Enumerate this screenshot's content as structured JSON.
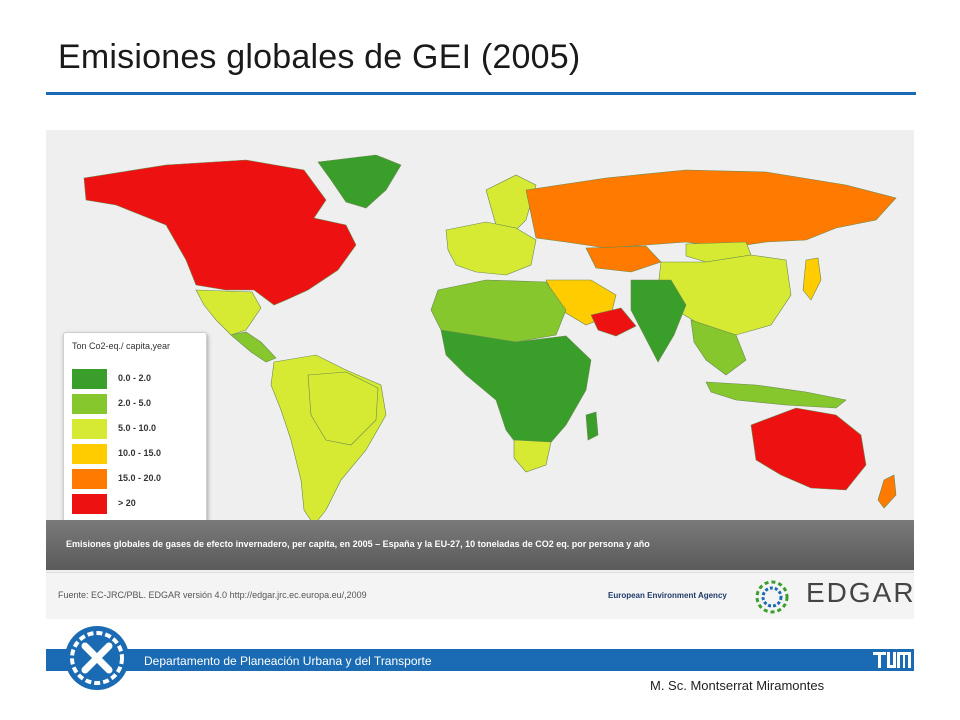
{
  "slide": {
    "title": "Emisiones globales de GEI (2005)"
  },
  "map": {
    "legend": {
      "title": "Ton Co2-eq./ capita,year",
      "items": [
        {
          "label": "0.0 - 2.0",
          "color": "#3a9e2b"
        },
        {
          "label": "2.0 - 5.0",
          "color": "#86c72d"
        },
        {
          "label": "5.0 - 10.0",
          "color": "#d6ea34"
        },
        {
          "label": "10.0 - 15.0",
          "color": "#ffcc00"
        },
        {
          "label": "15.0 - 20.0",
          "color": "#ff7a00"
        },
        {
          "label": "> 20",
          "color": "#ee1111"
        }
      ]
    },
    "caption": "Emisiones globales de gases de efecto invernadero, per capita, en 2005 – España y la EU-27, 10 toneladas de CO2 eq. por persona y año",
    "source": "Fuente: EC-JRC/PBL. EDGAR versión 4.0 http://edgar.jrc.ec.europa.eu/,2009",
    "agency": "European Environment Agency",
    "edgar_logo": "EDGAR",
    "region_colors": {
      "north_america": "#ee1111",
      "greenland": "#3a9e2b",
      "mexico": "#d6ea34",
      "central_america": "#86c72d",
      "south_america": "#d6ea34",
      "brazil": "#d6ea34",
      "argentina": "#d6ea34",
      "europe_west": "#d6ea34",
      "russia": "#ff7a00",
      "kazakhstan": "#ff7a00",
      "china": "#d6ea34",
      "mongolia": "#d6ea34",
      "india": "#3a9e2b",
      "southeast_asia": "#86c72d",
      "middle_east": "#ffcc00",
      "gulf": "#ee1111",
      "north_africa": "#86c72d",
      "africa_central": "#3a9e2b",
      "south_africa": "#d6ea34",
      "australia": "#ee1111",
      "new_zealand": "#ff7a00",
      "japan": "#ffcc00",
      "indonesia": "#86c72d",
      "scandinavia": "#d6ea34"
    }
  },
  "footer": {
    "department": "Departamento de Planeación Urbana y del Transporte",
    "author": "M. Sc. Montserrat Miramontes"
  }
}
